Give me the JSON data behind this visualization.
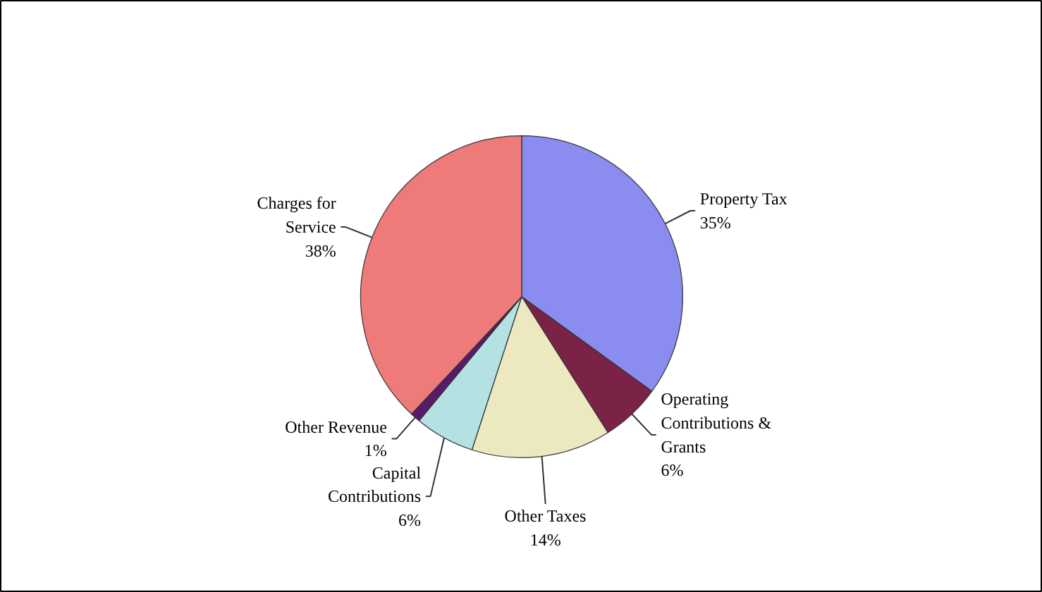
{
  "chart_data": {
    "type": "pie",
    "categories": [
      "Property Tax",
      "Operating Contributions & Grants",
      "Other Taxes",
      "Capital Contributions",
      "Other Revenue",
      "Charges for Service"
    ],
    "values": [
      35,
      6,
      14,
      6,
      1,
      38
    ],
    "value_labels": [
      "35%",
      "6%",
      "14%",
      "6%",
      "1%",
      "38%"
    ],
    "colors": [
      "#8a8cef",
      "#7b2346",
      "#ece8bf",
      "#b4e2e2",
      "#5a1a6a",
      "#ee7a7a"
    ],
    "legend": false
  }
}
